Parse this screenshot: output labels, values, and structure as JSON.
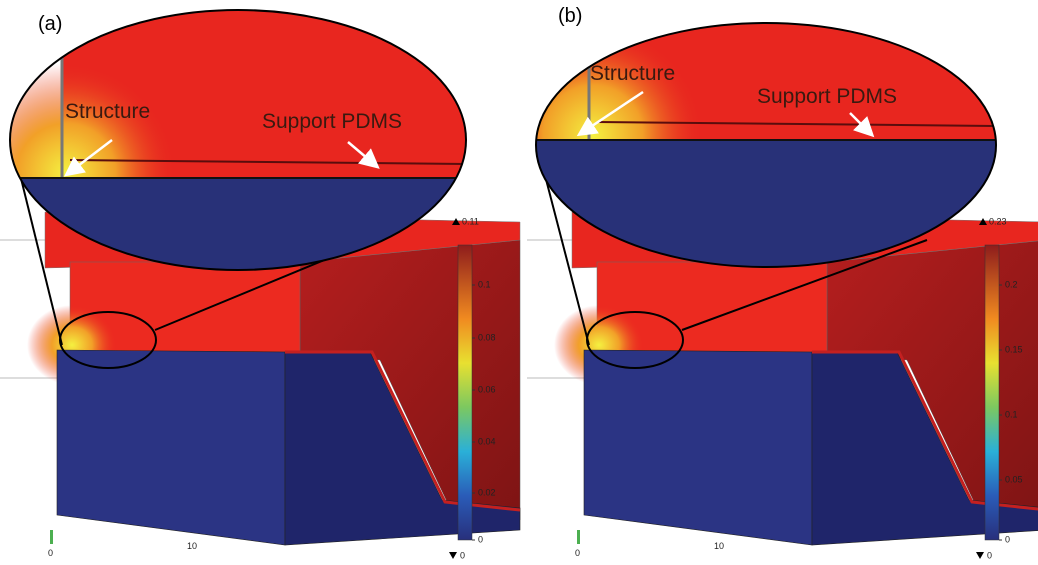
{
  "panels": [
    {
      "label": "(a)",
      "annotations": [
        "Structure",
        "Support PDMS"
      ],
      "colorbar": {
        "max": "0.11",
        "min": "0",
        "ticks": [
          "0.1",
          "0.08",
          "0.06",
          "0.04",
          "0.02",
          "0"
        ]
      },
      "axis_ticks": [
        "0",
        "10"
      ]
    },
    {
      "label": "(b)",
      "annotations": [
        "Structure",
        "Support PDMS"
      ],
      "colorbar": {
        "max": "0.23",
        "min": "0",
        "ticks": [
          "0.2",
          "0.15",
          "0.1",
          "0.05",
          "0"
        ]
      },
      "axis_ticks": [
        "0",
        "10"
      ]
    }
  ]
}
